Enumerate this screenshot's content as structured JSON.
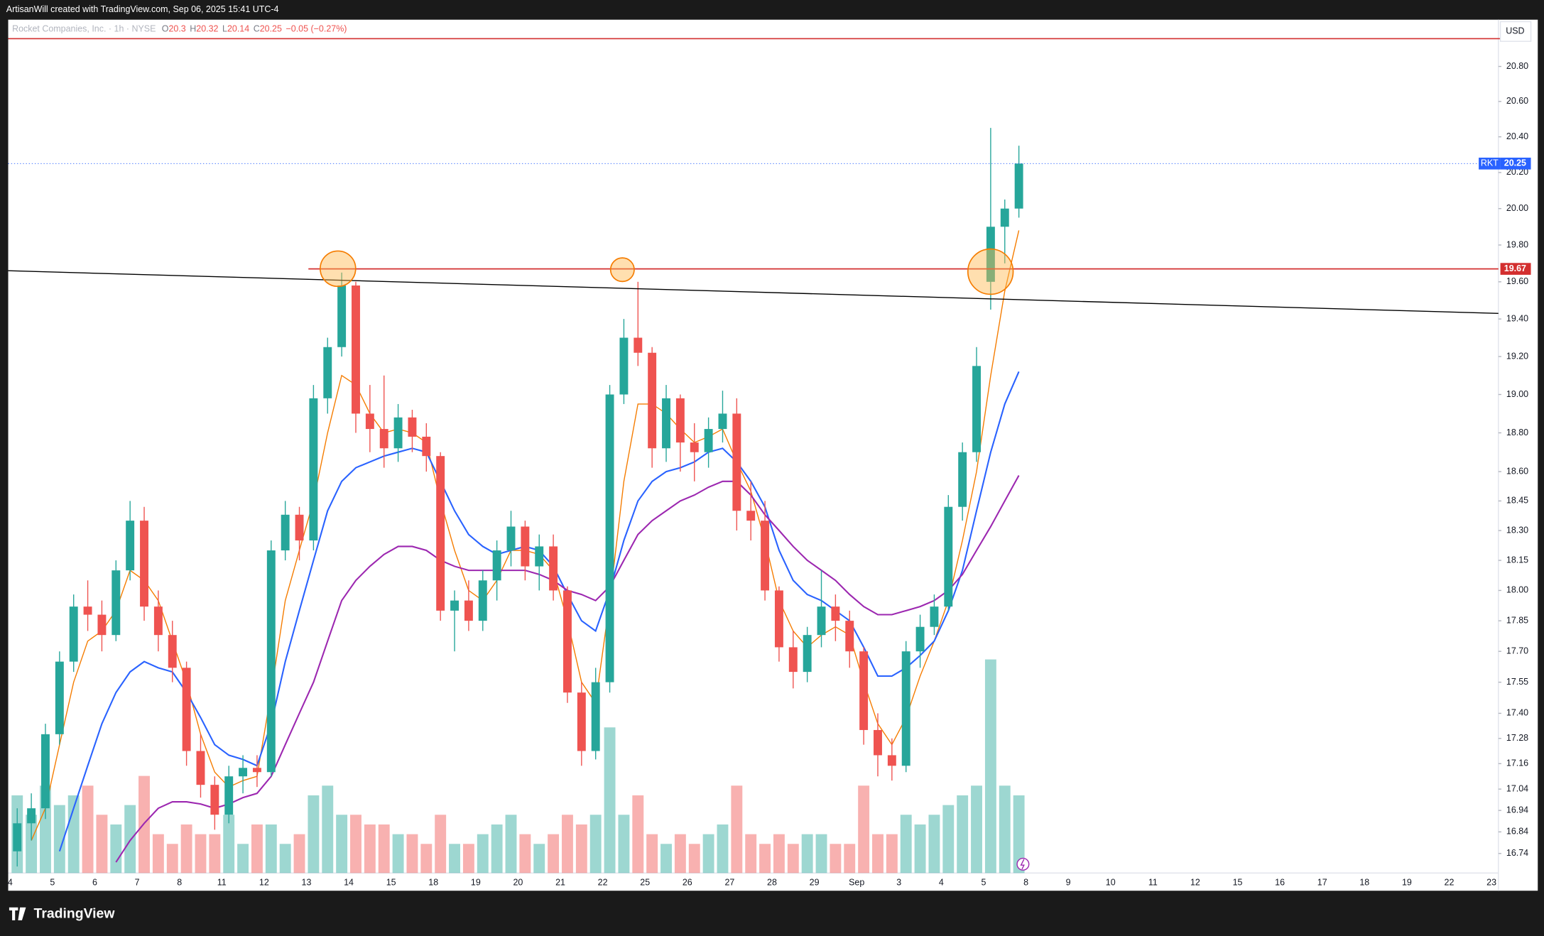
{
  "header": {
    "credit": "ArtisanWill created with TradingView.com, Sep 06, 2025 15:41 UTC-4"
  },
  "footer": {
    "brand": "TradingView"
  },
  "chart_data": {
    "type": "candlestick",
    "legend": {
      "symbol": "Rocket Companies, Inc. · 1h · NYSE",
      "o_label": "O",
      "open": 20.3,
      "h_label": "H",
      "high": 20.32,
      "l_label": "L",
      "low": 20.14,
      "c_label": "C",
      "close": 20.25,
      "change": "−0.05 (−0.27%)"
    },
    "currency": "USD",
    "log_scale": true,
    "ylim": [
      16.65,
      21.07
    ],
    "yticks": [
      {
        "value": 20.8,
        "label": "20.80"
      },
      {
        "value": 20.6,
        "label": "20.60"
      },
      {
        "value": 20.4,
        "label": "20.40"
      },
      {
        "value": 20.2,
        "label": "20.20"
      },
      {
        "value": 20,
        "label": "20.00"
      },
      {
        "value": 19.8,
        "label": "19.80"
      },
      {
        "value": 19.6,
        "label": "19.60"
      },
      {
        "value": 19.4,
        "label": "19.40"
      },
      {
        "value": 19.2,
        "label": "19.20"
      },
      {
        "value": 19,
        "label": "19.00"
      },
      {
        "value": 18.8,
        "label": "18.80"
      },
      {
        "value": 18.6,
        "label": "18.60"
      },
      18.45,
      {
        "value": 18.3,
        "label": "18.30"
      },
      18.15,
      {
        "value": 18,
        "label": "18.00"
      },
      17.85,
      {
        "value": 17.7,
        "label": "17.70"
      },
      17.55,
      {
        "value": 17.4,
        "label": "17.40"
      },
      17.28,
      17.16,
      17.04,
      16.94,
      16.84,
      16.74
    ],
    "categories": [
      "4",
      "5",
      "6",
      "7",
      "8",
      "11",
      "12",
      "13",
      "14",
      "15",
      "18",
      "19",
      "20",
      "21",
      "22",
      "25",
      "26",
      "27",
      "28",
      "29",
      "Sep",
      "3",
      "4",
      "5",
      "8",
      "9",
      "10",
      "11",
      "12",
      "15",
      "16",
      "17",
      "18",
      "19",
      "22",
      "23"
    ],
    "candles": {
      "open": [
        16.75,
        16.88,
        16.95,
        17.3,
        17.65,
        17.92,
        17.88,
        17.78,
        18.1,
        18.35,
        17.92,
        17.78,
        17.62,
        17.22,
        17.06,
        16.92,
        17.1,
        17.14,
        17.12,
        18.2,
        18.38,
        18.25,
        18.98,
        19.25,
        19.58,
        18.9,
        18.82,
        18.72,
        18.88,
        18.78,
        18.68,
        17.9,
        17.95,
        17.85,
        18.05,
        18.2,
        18.32,
        18.12,
        18.22,
        18.0,
        17.5,
        17.22,
        17.55,
        19.0,
        19.3,
        19.22,
        18.72,
        18.98,
        18.75,
        18.7,
        18.82,
        18.9,
        18.4,
        18.35,
        18.0,
        17.72,
        17.6,
        17.78,
        17.92,
        17.85,
        17.7,
        17.32,
        17.2,
        17.15,
        17.7,
        17.82,
        17.92,
        18.42,
        18.7,
        19.6,
        19.9,
        20.0
      ],
      "high": [
        16.95,
        17.02,
        17.35,
        17.7,
        17.98,
        18.05,
        17.95,
        18.15,
        18.45,
        18.42,
        18.0,
        17.85,
        17.65,
        17.3,
        17.1,
        17.15,
        17.2,
        17.2,
        18.25,
        18.45,
        18.42,
        19.05,
        19.3,
        19.65,
        19.6,
        19.05,
        19.1,
        18.95,
        18.92,
        18.85,
        18.7,
        18.0,
        18.05,
        18.1,
        18.25,
        18.4,
        18.35,
        18.28,
        18.28,
        18.02,
        17.55,
        17.62,
        19.05,
        19.4,
        19.6,
        19.25,
        19.05,
        19.0,
        18.85,
        18.88,
        19.02,
        18.98,
        18.55,
        18.45,
        18.02,
        17.8,
        17.82,
        18.1,
        17.98,
        17.9,
        17.72,
        17.4,
        17.28,
        17.75,
        17.88,
        17.98,
        18.48,
        18.75,
        19.25,
        20.45,
        20.05,
        20.35
      ],
      "low": [
        16.68,
        16.8,
        16.9,
        17.25,
        17.6,
        17.8,
        17.7,
        17.75,
        18.05,
        17.85,
        17.7,
        17.55,
        17.15,
        17.0,
        16.85,
        16.88,
        17.02,
        17.05,
        17.1,
        18.15,
        18.15,
        18.2,
        18.9,
        19.2,
        18.8,
        18.7,
        18.62,
        18.65,
        18.7,
        18.6,
        17.85,
        17.7,
        17.8,
        17.8,
        17.95,
        18.12,
        18.05,
        18.0,
        17.95,
        17.45,
        17.15,
        17.18,
        17.5,
        18.95,
        19.15,
        18.62,
        18.65,
        18.6,
        18.55,
        18.62,
        18.75,
        18.3,
        18.25,
        17.95,
        17.65,
        17.52,
        17.55,
        17.72,
        17.75,
        17.62,
        17.25,
        17.1,
        17.08,
        17.12,
        17.62,
        17.78,
        17.9,
        18.35,
        18.65,
        19.45,
        19.7,
        19.95
      ],
      "close": [
        16.88,
        16.95,
        17.3,
        17.65,
        17.92,
        17.88,
        17.78,
        18.1,
        18.35,
        17.92,
        17.78,
        17.62,
        17.22,
        17.06,
        16.92,
        17.1,
        17.14,
        17.12,
        18.2,
        18.38,
        18.25,
        18.98,
        19.25,
        19.58,
        18.9,
        18.82,
        18.72,
        18.88,
        18.78,
        18.68,
        17.9,
        17.95,
        17.85,
        18.05,
        18.2,
        18.32,
        18.12,
        18.22,
        18.0,
        17.5,
        17.22,
        17.55,
        19.0,
        19.3,
        19.22,
        18.72,
        18.98,
        18.75,
        18.7,
        18.82,
        18.9,
        18.4,
        18.35,
        18.0,
        17.72,
        17.6,
        17.78,
        17.92,
        17.85,
        17.7,
        17.32,
        17.2,
        17.15,
        17.7,
        17.82,
        17.92,
        18.42,
        18.7,
        19.15,
        19.9,
        20.0,
        20.25
      ]
    },
    "volume": [
      80,
      60,
      90,
      70,
      80,
      90,
      60,
      50,
      70,
      100,
      40,
      30,
      50,
      40,
      40,
      60,
      30,
      50,
      50,
      30,
      40,
      80,
      90,
      60,
      60,
      50,
      50,
      40,
      40,
      30,
      60,
      30,
      30,
      40,
      50,
      60,
      40,
      30,
      40,
      60,
      50,
      60,
      150,
      60,
      80,
      40,
      30,
      40,
      30,
      40,
      50,
      90,
      40,
      30,
      40,
      30,
      40,
      40,
      30,
      30,
      90,
      40,
      40,
      60,
      50,
      60,
      70,
      80,
      90,
      220,
      90,
      80
    ],
    "up_color": "#26a69a",
    "down_color": "#ef5350",
    "moving_averages": [
      {
        "color": "#f57c00",
        "values": [
          null,
          16.8,
          16.95,
          17.25,
          17.55,
          17.75,
          17.8,
          17.9,
          18.1,
          18.05,
          17.95,
          17.75,
          17.55,
          17.3,
          17.12,
          17.05,
          17.08,
          17.1,
          17.5,
          17.95,
          18.2,
          18.45,
          18.8,
          19.1,
          19.05,
          18.9,
          18.8,
          18.82,
          18.8,
          18.75,
          18.45,
          18.2,
          18.0,
          17.95,
          18.05,
          18.2,
          18.2,
          18.18,
          18.1,
          17.85,
          17.55,
          17.45,
          17.95,
          18.55,
          18.95,
          18.95,
          18.9,
          18.82,
          18.75,
          18.78,
          18.82,
          18.65,
          18.5,
          18.25,
          17.95,
          17.8,
          17.72,
          17.78,
          17.82,
          17.78,
          17.55,
          17.35,
          17.25,
          17.38,
          17.58,
          17.75,
          17.95,
          18.25,
          18.6,
          19.1,
          19.55,
          19.88
        ]
      },
      {
        "color": "#2962ff",
        "values": [
          null,
          null,
          null,
          16.75,
          16.95,
          17.15,
          17.35,
          17.5,
          17.6,
          17.65,
          17.62,
          17.6,
          17.5,
          17.38,
          17.25,
          17.2,
          17.18,
          17.15,
          17.35,
          17.65,
          17.9,
          18.15,
          18.4,
          18.55,
          18.62,
          18.65,
          18.68,
          18.7,
          18.72,
          18.7,
          18.55,
          18.4,
          18.28,
          18.22,
          18.18,
          18.2,
          18.22,
          18.2,
          18.12,
          17.98,
          17.85,
          17.8,
          18.0,
          18.25,
          18.45,
          18.55,
          18.6,
          18.62,
          18.65,
          18.7,
          18.72,
          18.65,
          18.55,
          18.42,
          18.2,
          18.05,
          17.98,
          17.95,
          17.9,
          17.85,
          17.72,
          17.58,
          17.58,
          17.62,
          17.68,
          17.75,
          17.9,
          18.1,
          18.4,
          18.7,
          18.95,
          19.12
        ]
      },
      {
        "color": "#9c27b0",
        "values": [
          null,
          null,
          null,
          null,
          null,
          null,
          null,
          16.7,
          16.8,
          16.88,
          16.95,
          16.98,
          16.98,
          16.97,
          16.95,
          16.97,
          17.0,
          17.02,
          17.1,
          17.25,
          17.4,
          17.55,
          17.75,
          17.95,
          18.05,
          18.12,
          18.18,
          18.22,
          18.22,
          18.2,
          18.15,
          18.12,
          18.1,
          18.1,
          18.1,
          18.1,
          18.1,
          18.08,
          18.05,
          18.0,
          17.98,
          17.95,
          18.02,
          18.15,
          18.28,
          18.35,
          18.4,
          18.45,
          18.48,
          18.52,
          18.55,
          18.55,
          18.48,
          18.38,
          18.3,
          18.22,
          18.15,
          18.1,
          18.05,
          17.98,
          17.92,
          17.88,
          17.88,
          17.9,
          17.92,
          17.95,
          18.0,
          18.08,
          18.2,
          18.32,
          18.45,
          18.58
        ]
      }
    ],
    "last_price": {
      "symbol": "RKT",
      "value": 20.25
    },
    "horizontal_line": {
      "value": 19.67,
      "color": "#d32f2f"
    },
    "top_line": {
      "value": 20.96,
      "color": "#d32f2f"
    },
    "trend_line": {
      "values": [
        19.66,
        19.43
      ],
      "color": "#000000"
    }
  }
}
